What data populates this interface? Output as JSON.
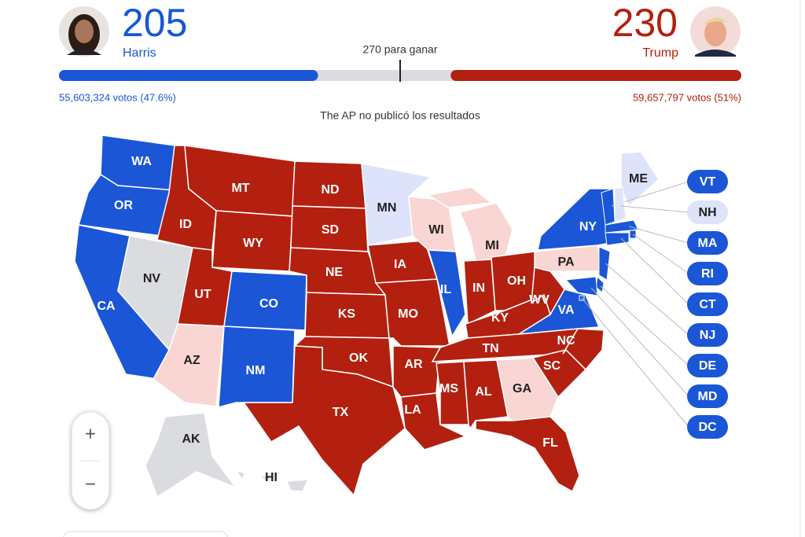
{
  "harris": {
    "electoral": 205,
    "name": "Harris",
    "votes": "55,603,324 votos (47.6%)",
    "color": "#1a56d6"
  },
  "trump": {
    "electoral": 230,
    "name": "Trump",
    "votes": "59,657,797 votos (51%)",
    "color": "#b3200f"
  },
  "threshold": {
    "value": 270,
    "label": "270 para ganar"
  },
  "note": "The AP no publicó los resultados",
  "zoom": {
    "in": "+",
    "out": "−"
  },
  "states": [
    {
      "label": "WA",
      "color": "#1a56d6"
    },
    {
      "label": "OR",
      "color": "#1a56d6"
    },
    {
      "label": "CA",
      "color": "#1a56d6"
    },
    {
      "label": "NV",
      "color": "#dadce0"
    },
    {
      "label": "ID",
      "color": "#b3200f"
    },
    {
      "label": "MT",
      "color": "#b3200f"
    },
    {
      "label": "WY",
      "color": "#b3200f"
    },
    {
      "label": "UT",
      "color": "#b3200f"
    },
    {
      "label": "CO",
      "color": "#1a56d6"
    },
    {
      "label": "AZ",
      "color": "#f9d6d3"
    },
    {
      "label": "NM",
      "color": "#1a56d6"
    },
    {
      "label": "ND",
      "color": "#b3200f"
    },
    {
      "label": "SD",
      "color": "#b3200f"
    },
    {
      "label": "NE",
      "color": "#b3200f"
    },
    {
      "label": "KS",
      "color": "#b3200f"
    },
    {
      "label": "OK",
      "color": "#b3200f"
    },
    {
      "label": "TX",
      "color": "#b3200f"
    },
    {
      "label": "MN",
      "color": "#dde3fa"
    },
    {
      "label": "IA",
      "color": "#b3200f"
    },
    {
      "label": "MO",
      "color": "#b3200f"
    },
    {
      "label": "AR",
      "color": "#b3200f"
    },
    {
      "label": "LA",
      "color": "#b3200f"
    },
    {
      "label": "WI",
      "color": "#f9d6d3"
    },
    {
      "label": "IL",
      "color": "#1a56d6"
    },
    {
      "label": "MI",
      "color": "#f9d6d3"
    },
    {
      "label": "IN",
      "color": "#b3200f"
    },
    {
      "label": "OH",
      "color": "#b3200f"
    },
    {
      "label": "KY",
      "color": "#b3200f"
    },
    {
      "label": "TN",
      "color": "#b3200f"
    },
    {
      "label": "MS",
      "color": "#b3200f"
    },
    {
      "label": "AL",
      "color": "#b3200f"
    },
    {
      "label": "GA",
      "color": "#f9d6d3"
    },
    {
      "label": "FL",
      "color": "#b3200f"
    },
    {
      "label": "SC",
      "color": "#b3200f"
    },
    {
      "label": "NC",
      "color": "#b3200f"
    },
    {
      "label": "VA",
      "color": "#1a56d6"
    },
    {
      "label": "WV",
      "color": "#b3200f"
    },
    {
      "label": "PA",
      "color": "#f9d6d3"
    },
    {
      "label": "NY",
      "color": "#1a56d6"
    },
    {
      "label": "ME",
      "color": "#dde3fa"
    },
    {
      "label": "AK",
      "color": "#dadce0"
    },
    {
      "label": "HI",
      "color": "#dadce0"
    }
  ],
  "callouts": [
    {
      "label": "VT",
      "color": "#1a56d6"
    },
    {
      "label": "NH",
      "color": "#dde3fa"
    },
    {
      "label": "MA",
      "color": "#1a56d6"
    },
    {
      "label": "RI",
      "color": "#1a56d6"
    },
    {
      "label": "CT",
      "color": "#1a56d6"
    },
    {
      "label": "NJ",
      "color": "#1a56d6"
    },
    {
      "label": "DE",
      "color": "#1a56d6"
    },
    {
      "label": "MD",
      "color": "#1a56d6"
    },
    {
      "label": "DC",
      "color": "#1a56d6"
    }
  ]
}
